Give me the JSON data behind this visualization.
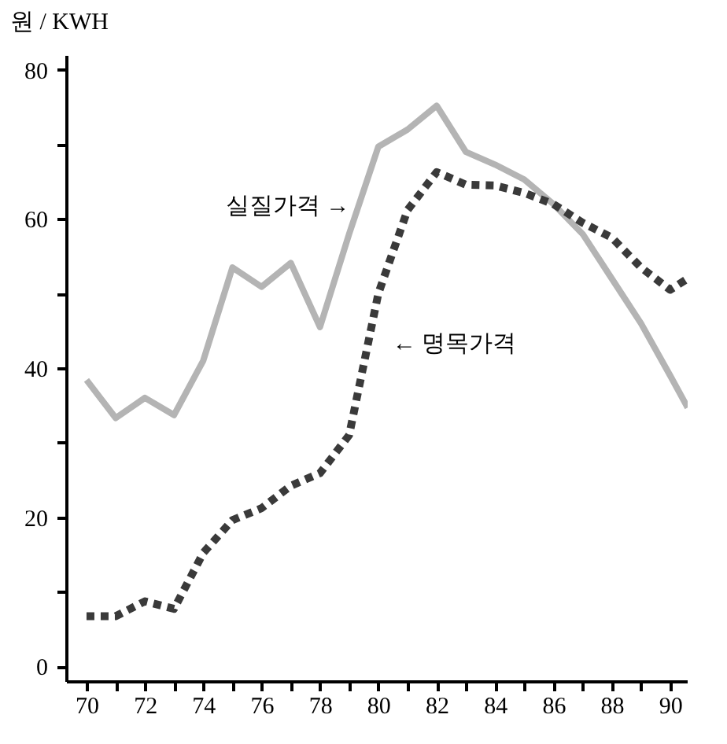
{
  "chart_data": {
    "type": "line",
    "ylabel": "원 / KWH",
    "xlim": [
      69.3,
      90.6
    ],
    "xticks": [
      70,
      {
        "value": 71,
        "label": null
      },
      72,
      {
        "value": 73,
        "label": null
      },
      74,
      {
        "value": 75,
        "label": null
      },
      76,
      {
        "value": 77,
        "label": null
      },
      78,
      {
        "value": 79,
        "label": null
      },
      80,
      {
        "value": 81,
        "label": null
      },
      82,
      {
        "value": 83,
        "label": null
      },
      84,
      {
        "value": 85,
        "label": null
      },
      86,
      {
        "value": 87,
        "label": null
      },
      88,
      {
        "value": 89,
        "label": null
      },
      90
    ],
    "ylim": [
      -2,
      82
    ],
    "yticks": [
      0,
      {
        "value": 10,
        "label": null
      },
      20,
      {
        "value": 30,
        "label": null
      },
      40,
      {
        "value": 50,
        "label": null
      },
      60,
      {
        "value": 70,
        "label": null
      },
      80
    ],
    "grid": false,
    "marker": "none",
    "series": [
      {
        "color": "#b4b4b4",
        "line_style": "solid",
        "x": [
          70,
          71,
          72,
          73,
          74,
          75,
          76,
          77,
          78,
          79,
          80,
          81,
          82,
          83,
          84,
          85,
          86,
          87,
          88,
          89,
          90,
          90.6
        ],
        "values": [
          38.4,
          33.3,
          36,
          33.7,
          41,
          53.5,
          50.9,
          54.1,
          45.5,
          58,
          69.7,
          72,
          75.2,
          69,
          67.3,
          65.3,
          62,
          58,
          52,
          46,
          39,
          34.7
        ]
      },
      {
        "color": "#3a3a3a",
        "line_style": "dotted",
        "x": [
          70,
          71,
          72,
          73,
          74,
          75,
          76,
          77,
          78,
          79,
          80,
          81,
          82,
          83,
          84,
          85,
          86,
          87,
          88,
          89,
          90,
          90.6
        ],
        "values": [
          6.7,
          6.7,
          8.7,
          7.7,
          15.2,
          19.6,
          21.2,
          24.2,
          25.9,
          31,
          50,
          61.2,
          66.3,
          64.6,
          64.5,
          63.5,
          62,
          59.5,
          57.5,
          53.5,
          50.5,
          52
        ]
      }
    ],
    "annotations": [
      "실질가격 →",
      "← 명목가격"
    ]
  }
}
